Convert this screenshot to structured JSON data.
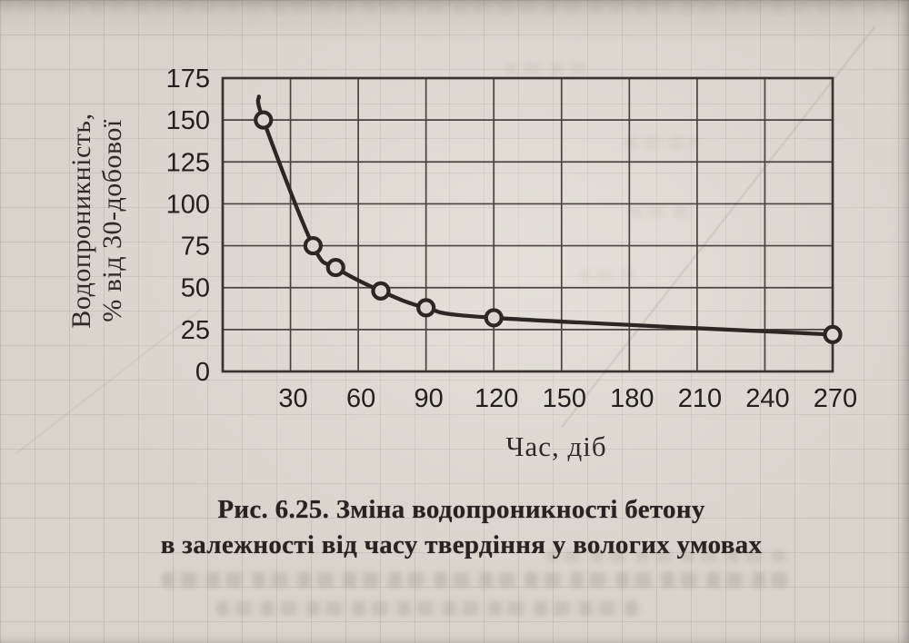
{
  "figure": {
    "caption_line1": "Рис. 6.25. Зміна водопроникності бетону",
    "caption_line2": "в залежності від часу твердіння у вологих умовах"
  },
  "chart_data": {
    "type": "line",
    "title": "",
    "xlabel": "Час, діб",
    "ylabel_line1": "Водопроникність,",
    "ylabel_line2": "% від 30-добової",
    "xlim": [
      0,
      270
    ],
    "ylim": [
      0,
      175
    ],
    "xticks": [
      30,
      60,
      90,
      120,
      150,
      180,
      210,
      240,
      270
    ],
    "yticks": [
      0,
      25,
      50,
      75,
      100,
      125,
      150,
      175
    ],
    "grid": true,
    "legend": false,
    "series": [
      {
        "name": "водопроникність бетону",
        "marker": "open-circle",
        "curve_tail_start": [
          16,
          164
        ],
        "points": [
          [
            18,
            150
          ],
          [
            40,
            75
          ],
          [
            50,
            62
          ],
          [
            70,
            48
          ],
          [
            90,
            38
          ],
          [
            120,
            32
          ],
          [
            270,
            22
          ]
        ]
      }
    ],
    "colors": {
      "ink": "#2b2823",
      "grid_line": "#38352f",
      "marker_fill": "#dcd8d0",
      "paper": "#d8d4cc"
    }
  }
}
